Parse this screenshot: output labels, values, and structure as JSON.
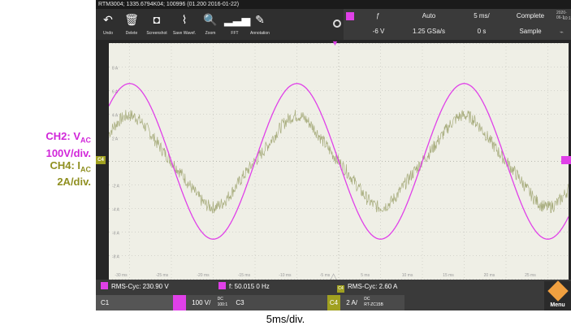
{
  "window": {
    "title": "RTM3004; 1335.6794K04; 100996 (01.200 2016-01-22)"
  },
  "toolbar": {
    "items": [
      {
        "label": "Undo",
        "icon": "undo-arrow-icon",
        "glyph": "↶"
      },
      {
        "label": "Delete",
        "icon": "trash-icon",
        "glyph": "🗑"
      },
      {
        "label": "Screenshot",
        "icon": "camera-icon",
        "glyph": "◘"
      },
      {
        "label": "Save Wavef.",
        "icon": "save-waveform-icon",
        "glyph": "⌇"
      },
      {
        "label": "Zoom",
        "icon": "zoom-icon",
        "glyph": "🔍"
      },
      {
        "label": "FFT",
        "icon": "fft-icon",
        "glyph": "▂▃▅"
      },
      {
        "label": "Annotation",
        "icon": "pencil-icon",
        "glyph": "✎"
      }
    ]
  },
  "acquisition": {
    "trigger_level": "-6 V",
    "sample_rate": "1.25 GSa/s",
    "mode": "Auto",
    "timebase": "5 ms/",
    "position": "0 s",
    "status": "Complete",
    "acq_type": "Sample",
    "date": "2020-06-1",
    "time": "10:1"
  },
  "y_axis_labels": [
    "8 A",
    "6 A",
    "4 A",
    "2 A",
    "-2 A",
    "-4 A",
    "-6 A",
    "-8 A"
  ],
  "x_axis_labels": [
    "-30 ms",
    "-25 ms",
    "-20 ms",
    "-15 ms",
    "-10 ms",
    "-5 ms",
    "5 ms",
    "10 ms",
    "15 ms",
    "20 ms",
    "25 ms"
  ],
  "measurements": {
    "ch2_rms": "RMS-Cyc: 230.90 V",
    "frequency": "f: 50.015 0 Hz",
    "ch4_rms": "RMS-Cyc: 2.60 A",
    "ch4_tag": "C4"
  },
  "channels": {
    "c1": "C1",
    "c2_scale": "100 V/",
    "c2_coupling": "DC",
    "c2_probe": "100:1",
    "c3": "C3",
    "c4": "C4",
    "c4_scale": "2 A/",
    "c4_coupling": "DC",
    "c4_probe": "RT-ZC15B"
  },
  "menu_label": "Menu",
  "annotation": {
    "ch2_line1": "CH2: V",
    "ch2_sub": "AC",
    "ch2_line2": "100V/div.",
    "ch4_line1": "CH4: I",
    "ch4_sub": "AC",
    "ch4_line2": "2A/div.",
    "timebase": "5ms/div."
  },
  "colors": {
    "ch2": "#e040e8",
    "ch4": "#a8ad7e",
    "c4_tag": "#a0a020",
    "background": "#efefe6"
  },
  "chart_data": {
    "type": "line",
    "xlabel": "",
    "ylabel": "",
    "xlim": [
      -35,
      35
    ],
    "ylim": [
      -9,
      9
    ],
    "frequency_hz": 50.015,
    "series": [
      {
        "name": "",
        "unit": "V",
        "channel": "CH2",
        "amplitude_div": 3.3,
        "rms": 230.9
      },
      {
        "name": "",
        "unit": "A",
        "channel": "CH4",
        "amplitude_div": 1.8,
        "rms": 2.6
      }
    ]
  }
}
